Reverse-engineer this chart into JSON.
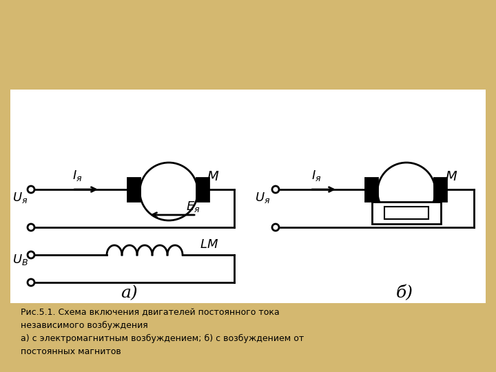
{
  "bg_color": "#d4b870",
  "white_bg": "#ffffff",
  "black": "#000000",
  "caption": "Рис.5.1. Схема включения двигателей постоянного тока\nнезависимого возбуждения\nа) с электромагнитным возбуждением; б) с возбуждением от\nпостоянных магнитов",
  "label_a": "а)",
  "label_b": "б)",
  "Iya": "$I_я$",
  "Uya_a": "$U_я$",
  "Uya_b": "$U_я$",
  "Eya": "$E_я$",
  "LM": "$LM$",
  "UB": "$U_В$",
  "M": "$M$"
}
